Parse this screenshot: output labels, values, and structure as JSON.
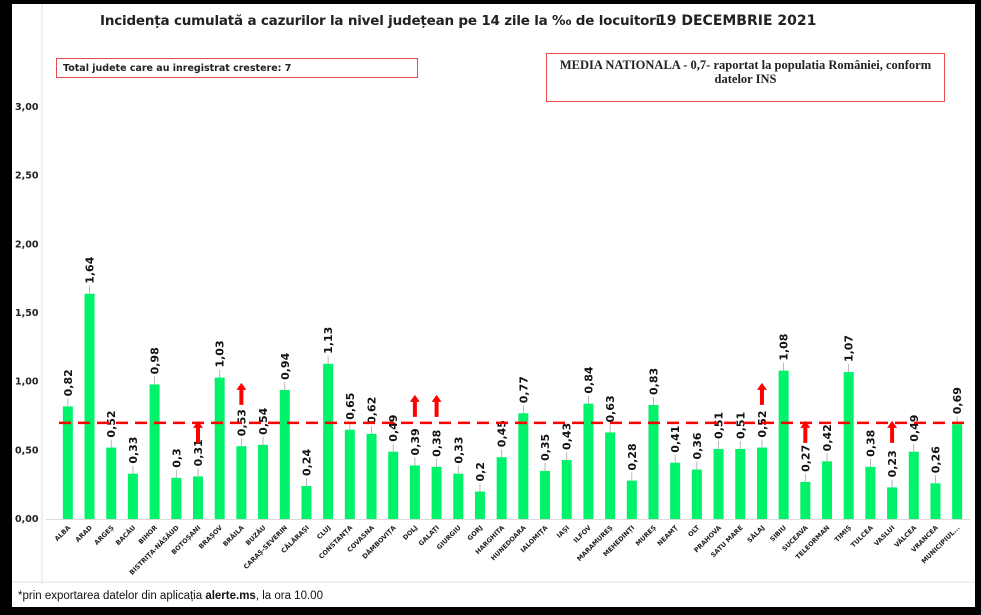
{
  "header": {
    "title": "Incidența cumulată a cazurilor la nivel județean pe 14 zile la ‰ de locuitori",
    "date": "19 DECEMBRIE 2021"
  },
  "annotations": {
    "increase_box": "Total judete care au inregistrat crestere: 7",
    "national_box_line1": "MEDIA NATIONALA - 0,7-  raportat la populatia României, conform",
    "national_box_line2": "datelor INS"
  },
  "footnote": {
    "prefix": "*prin exportarea datelor din aplicația ",
    "app": "alerte.ms",
    "suffix": ", la ora 10.00"
  },
  "colors": {
    "bar": "#00f26a",
    "average_line": "#ff0000",
    "increase_arrow": "#ff0000",
    "box_border": "#e84c4c"
  },
  "chart_data": {
    "type": "bar",
    "title": "Incidența cumulată a cazurilor la nivel județean pe 14 zile la ‰ de locuitori",
    "xlabel": "",
    "ylabel": "",
    "ylim": [
      0,
      3
    ],
    "yticks": [
      "0,00",
      "0,50",
      "1,00",
      "1,50",
      "2,00",
      "2,50",
      "3,00"
    ],
    "grid": false,
    "reference_line": {
      "label": "MEDIA NATIONALA",
      "value": 0.7,
      "style": "dashed"
    },
    "categories": [
      "ALBA",
      "ARAD",
      "ARGEȘ",
      "BACĂU",
      "BIHOR",
      "BISTRIȚA-NĂSĂUD",
      "BOTOȘANI",
      "BRAȘOV",
      "BRĂILA",
      "BUZĂU",
      "CARAȘ-SEVERIN",
      "CĂLĂRAȘI",
      "CLUJ",
      "CONSTANȚA",
      "COVASNA",
      "DÂMBOVIȚA",
      "DOLJ",
      "GALAȚI",
      "GIURGIU",
      "GORJ",
      "HARGHITA",
      "HUNEDOARA",
      "IALOMIȚA",
      "IAȘI",
      "ILFOV",
      "MARAMUREȘ",
      "MEHEDINȚI",
      "MUREȘ",
      "NEAMȚ",
      "OLT",
      "PRAHOVA",
      "SATU MARE",
      "SĂLAJ",
      "SIBIU",
      "SUCEAVA",
      "TELEORMAN",
      "TIMIȘ",
      "TULCEA",
      "VASLUI",
      "VÂLCEA",
      "VRANCEA",
      "MUNICIPIUL..."
    ],
    "values": [
      0.82,
      1.64,
      0.52,
      0.33,
      0.98,
      0.3,
      0.31,
      1.03,
      0.53,
      0.54,
      0.94,
      0.24,
      1.13,
      0.65,
      0.62,
      0.49,
      0.39,
      0.38,
      0.33,
      0.2,
      0.45,
      0.77,
      0.35,
      0.43,
      0.84,
      0.63,
      0.28,
      0.83,
      0.41,
      0.36,
      0.51,
      0.51,
      0.52,
      1.08,
      0.27,
      0.42,
      1.07,
      0.38,
      0.23,
      0.49,
      0.26,
      0.69
    ],
    "labels": [
      "0,82",
      "1,64",
      "0,52",
      "0,33",
      "0,98",
      "0,3",
      "0,31",
      "1,03",
      "0,53",
      "0,54",
      "0,94",
      "0,24",
      "1,13",
      "0,65",
      "0,62",
      "0,49",
      "0,39",
      "0,38",
      "0,33",
      "0,2",
      "0,45",
      "0,77",
      "0,35",
      "0,43",
      "0,84",
      "0,63",
      "0,28",
      "0,83",
      "0,41",
      "0,36",
      "0,51",
      "0,51",
      "0,52",
      "1,08",
      "0,27",
      "0,42",
      "1,07",
      "0,38",
      "0,23",
      "0,49",
      "0,26",
      "0,69"
    ],
    "increase_markers": [
      "BOTOȘANI",
      "BRĂILA",
      "DOLJ",
      "GALAȚI",
      "SĂLAJ",
      "SUCEAVA",
      "VASLUI"
    ]
  }
}
